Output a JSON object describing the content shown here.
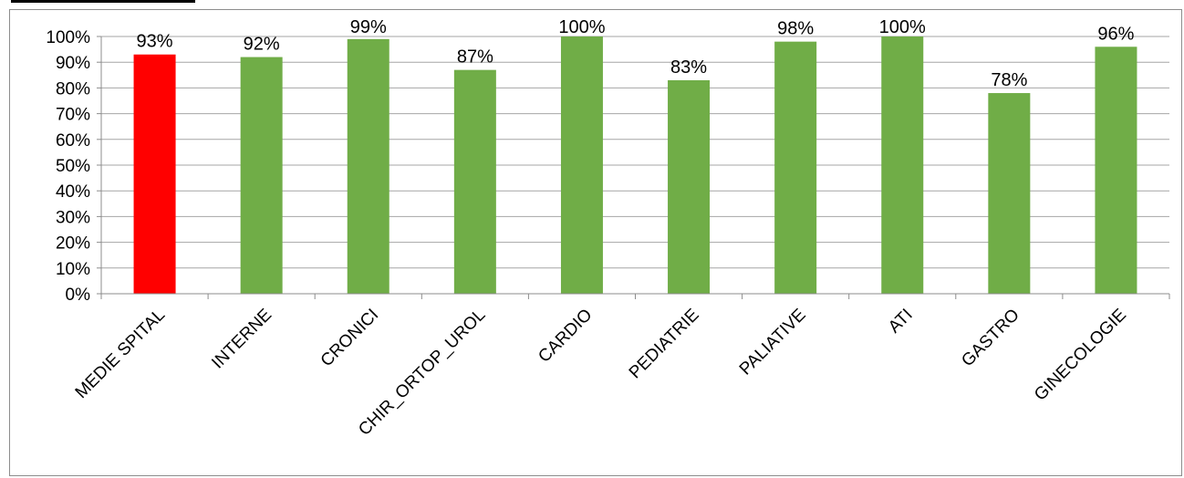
{
  "chart_data": {
    "type": "bar",
    "categories": [
      "MEDIE SPITAL",
      "INTERNE",
      "CRONICI",
      "CHIR_ORTOP_UROL",
      "CARDIO",
      "PEDIATRIE",
      "PALIATIVE",
      "ATI",
      "GASTRO",
      "GINECOLOGIE"
    ],
    "values": [
      93,
      92,
      99,
      87,
      100,
      83,
      98,
      100,
      78,
      96
    ],
    "data_labels": [
      "93%",
      "92%",
      "99%",
      "87%",
      "100%",
      "83%",
      "98%",
      "100%",
      "78%",
      "96%"
    ],
    "y_ticks": [
      "0%",
      "10%",
      "20%",
      "30%",
      "40%",
      "50%",
      "60%",
      "70%",
      "80%",
      "90%",
      "100%"
    ],
    "ylim": [
      0,
      100
    ],
    "grid": true,
    "legend": "none",
    "colors": {
      "highlight": "#ff0000",
      "default": "#70ad47"
    },
    "highlight_index": 0
  }
}
